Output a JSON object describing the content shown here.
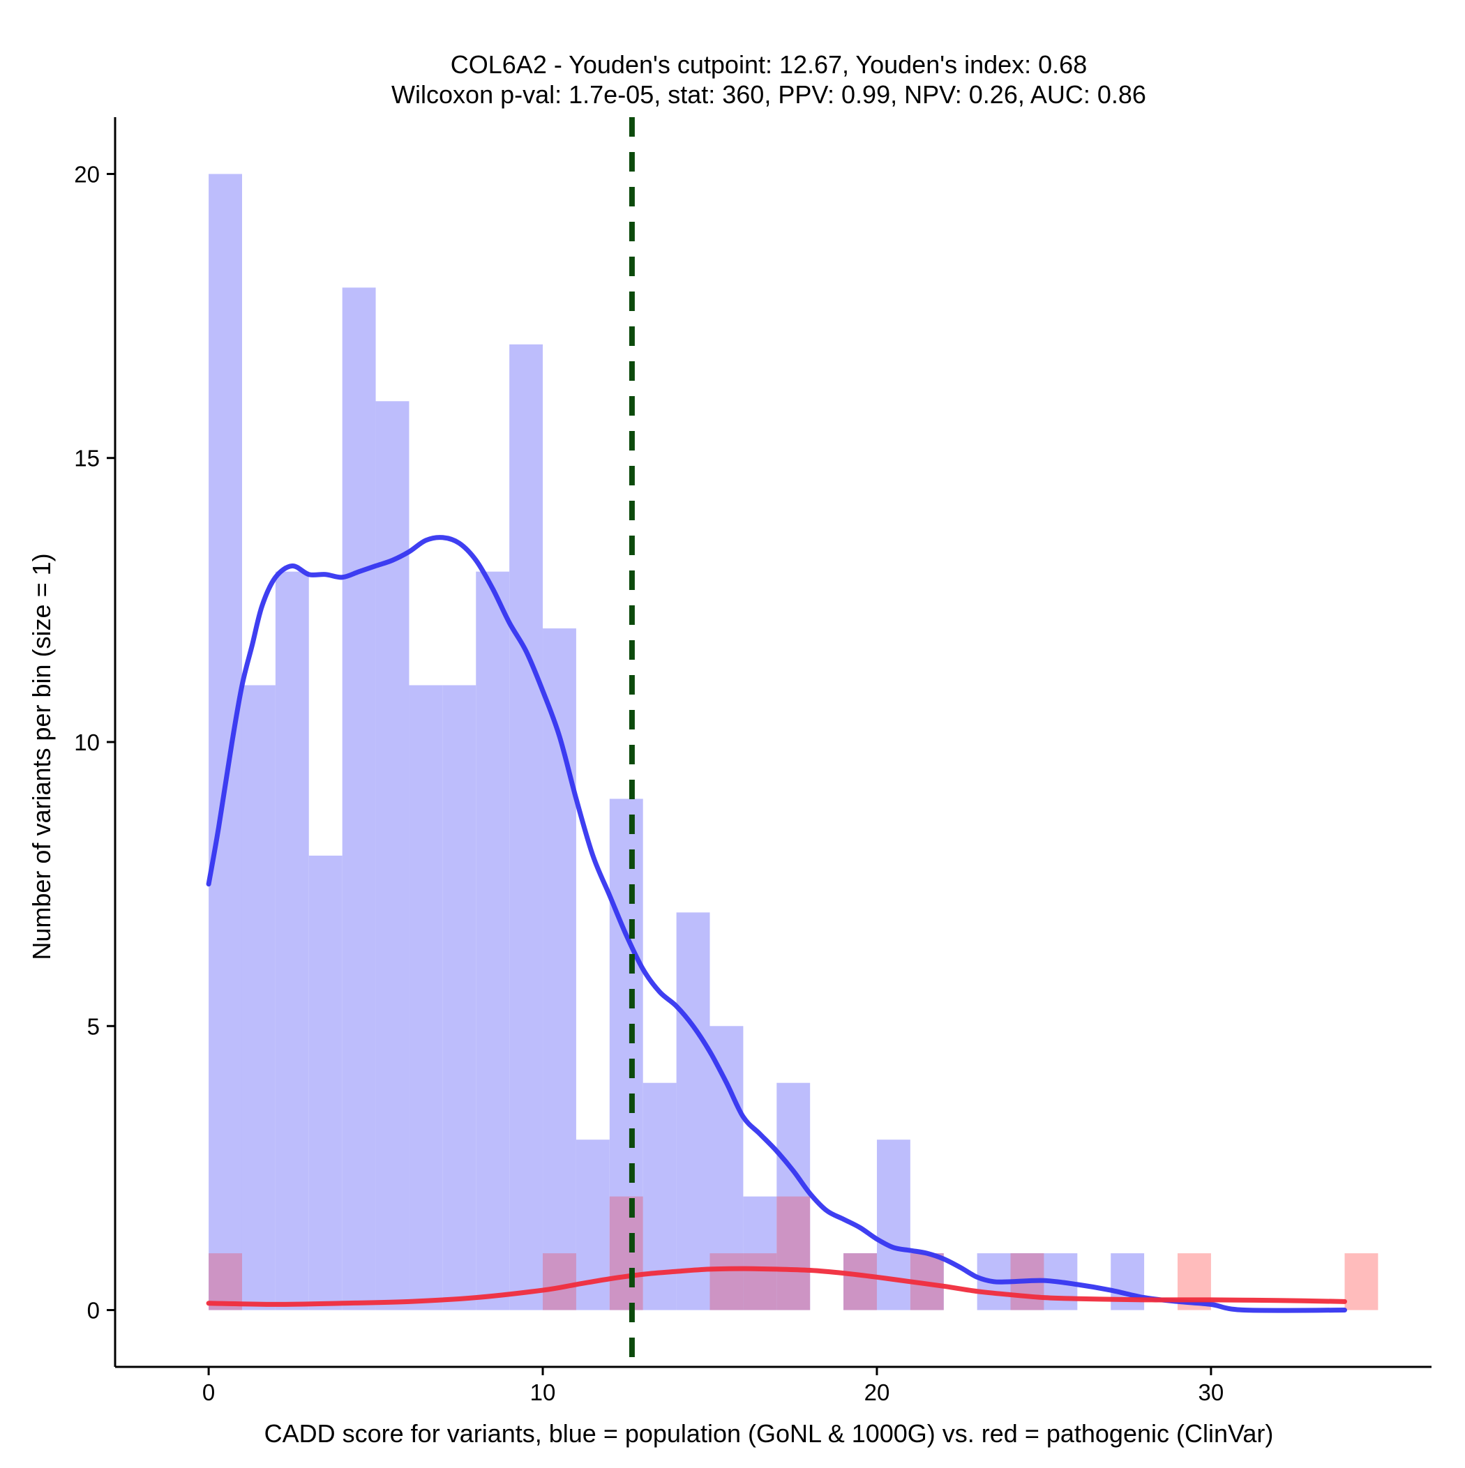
{
  "chart_data": {
    "type": "histogram",
    "title_line1": "COL6A2 - Youden's cutpoint: 12.67, Youden's index: 0.68",
    "title_line2": "Wilcoxon p-val: 1.7e-05, stat: 360, PPV: 0.99, NPV: 0.26, AUC: 0.86",
    "xlabel": "CADD score for variants, blue = population (GoNL & 1000G) vs. red = pathogenic (ClinVar)",
    "ylabel": "Number of variants per bin (size = 1)",
    "xlim": [
      -2.8,
      36.6
    ],
    "ylim": [
      -1.0,
      21.0
    ],
    "x_ticks": [
      0,
      10,
      20,
      30
    ],
    "y_ticks": [
      0,
      5,
      10,
      15,
      20
    ],
    "bin_size": 1,
    "cutpoint": 12.67,
    "colors": {
      "population_bar": "#bdbdfc",
      "pathogenic_bar": "#ffbcbc",
      "overlap_bar": "#cd94c4",
      "population_curve": "#3535f0",
      "pathogenic_curve": "#f02c3c",
      "cutpoint_line": "#0c4a0c",
      "axis": "#000000"
    },
    "series": [
      {
        "name": "population (GoNL & 1000G)",
        "bins": [
          {
            "x": 0,
            "count": 20
          },
          {
            "x": 1,
            "count": 11
          },
          {
            "x": 2,
            "count": 13
          },
          {
            "x": 3,
            "count": 8
          },
          {
            "x": 4,
            "count": 18
          },
          {
            "x": 5,
            "count": 16
          },
          {
            "x": 6,
            "count": 11
          },
          {
            "x": 7,
            "count": 11
          },
          {
            "x": 8,
            "count": 13
          },
          {
            "x": 9,
            "count": 17
          },
          {
            "x": 10,
            "count": 12
          },
          {
            "x": 11,
            "count": 3
          },
          {
            "x": 12,
            "count": 9
          },
          {
            "x": 13,
            "count": 4
          },
          {
            "x": 14,
            "count": 7
          },
          {
            "x": 15,
            "count": 5
          },
          {
            "x": 16,
            "count": 2
          },
          {
            "x": 17,
            "count": 4
          },
          {
            "x": 18,
            "count": 0
          },
          {
            "x": 19,
            "count": 1
          },
          {
            "x": 20,
            "count": 3
          },
          {
            "x": 21,
            "count": 1
          },
          {
            "x": 22,
            "count": 0
          },
          {
            "x": 23,
            "count": 1
          },
          {
            "x": 24,
            "count": 1
          },
          {
            "x": 25,
            "count": 1
          },
          {
            "x": 26,
            "count": 0
          },
          {
            "x": 27,
            "count": 1
          }
        ],
        "density_curve": [
          [
            0,
            7.5
          ],
          [
            0.3,
            8.5
          ],
          [
            0.7,
            10.0
          ],
          [
            1.0,
            11.0
          ],
          [
            1.3,
            11.7
          ],
          [
            1.6,
            12.4
          ],
          [
            2.0,
            12.9
          ],
          [
            2.5,
            13.1
          ],
          [
            3.0,
            12.95
          ],
          [
            3.5,
            12.95
          ],
          [
            4.0,
            12.9
          ],
          [
            4.5,
            13.0
          ],
          [
            5.0,
            13.1
          ],
          [
            5.5,
            13.2
          ],
          [
            6.0,
            13.35
          ],
          [
            6.5,
            13.55
          ],
          [
            7.0,
            13.6
          ],
          [
            7.5,
            13.5
          ],
          [
            8.0,
            13.2
          ],
          [
            8.5,
            12.7
          ],
          [
            9.0,
            12.1
          ],
          [
            9.5,
            11.6
          ],
          [
            10.0,
            10.9
          ],
          [
            10.5,
            10.1
          ],
          [
            11.0,
            9.0
          ],
          [
            11.5,
            8.0
          ],
          [
            12.0,
            7.3
          ],
          [
            12.5,
            6.6
          ],
          [
            13.0,
            6.0
          ],
          [
            13.5,
            5.6
          ],
          [
            14.0,
            5.35
          ],
          [
            14.5,
            5.0
          ],
          [
            15.0,
            4.55
          ],
          [
            15.5,
            4.0
          ],
          [
            16.0,
            3.4
          ],
          [
            16.5,
            3.1
          ],
          [
            17.0,
            2.8
          ],
          [
            17.5,
            2.45
          ],
          [
            18.0,
            2.05
          ],
          [
            18.5,
            1.75
          ],
          [
            19.0,
            1.6
          ],
          [
            19.5,
            1.45
          ],
          [
            20.0,
            1.25
          ],
          [
            20.5,
            1.1
          ],
          [
            21.0,
            1.05
          ],
          [
            21.5,
            1.0
          ],
          [
            22.0,
            0.9
          ],
          [
            22.5,
            0.75
          ],
          [
            23.0,
            0.58
          ],
          [
            23.5,
            0.5
          ],
          [
            24.0,
            0.5
          ],
          [
            25.0,
            0.52
          ],
          [
            26.0,
            0.45
          ],
          [
            27.0,
            0.35
          ],
          [
            28.0,
            0.22
          ],
          [
            29.0,
            0.15
          ],
          [
            30.0,
            0.1
          ],
          [
            31.0,
            0.0
          ],
          [
            34.0,
            0.0
          ]
        ]
      },
      {
        "name": "pathogenic (ClinVar)",
        "bins": [
          {
            "x": 0,
            "count": 1
          },
          {
            "x": 10,
            "count": 1
          },
          {
            "x": 12,
            "count": 2
          },
          {
            "x": 15,
            "count": 1
          },
          {
            "x": 16,
            "count": 1
          },
          {
            "x": 17,
            "count": 2
          },
          {
            "x": 19,
            "count": 1
          },
          {
            "x": 21,
            "count": 1
          },
          {
            "x": 24,
            "count": 1
          },
          {
            "x": 29,
            "count": 1
          },
          {
            "x": 34,
            "count": 1
          }
        ],
        "density_curve": [
          [
            0,
            0.12
          ],
          [
            2.0,
            0.1
          ],
          [
            4.0,
            0.12
          ],
          [
            6.0,
            0.15
          ],
          [
            8.0,
            0.22
          ],
          [
            10.0,
            0.35
          ],
          [
            11.0,
            0.45
          ],
          [
            12.0,
            0.55
          ],
          [
            13.0,
            0.63
          ],
          [
            14.0,
            0.68
          ],
          [
            15.0,
            0.72
          ],
          [
            16.0,
            0.73
          ],
          [
            17.0,
            0.72
          ],
          [
            18.0,
            0.7
          ],
          [
            19.0,
            0.65
          ],
          [
            20.0,
            0.58
          ],
          [
            21.0,
            0.5
          ],
          [
            22.0,
            0.42
          ],
          [
            23.0,
            0.33
          ],
          [
            24.0,
            0.27
          ],
          [
            25.0,
            0.22
          ],
          [
            26.0,
            0.2
          ],
          [
            27.0,
            0.19
          ],
          [
            28.0,
            0.18
          ],
          [
            29.0,
            0.18
          ],
          [
            30.0,
            0.18
          ],
          [
            32.0,
            0.17
          ],
          [
            34.0,
            0.15
          ]
        ]
      }
    ]
  }
}
